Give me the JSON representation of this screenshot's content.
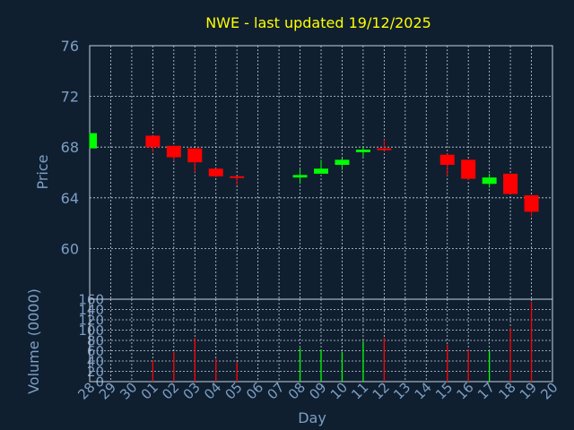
{
  "colors": {
    "background": "#0f1f30",
    "title": "#ffff00",
    "axis_text": "#7d9fc4",
    "grid": "#c8d2de",
    "up": "#00ff00",
    "down": "#ff0000"
  },
  "chart_data": [
    {
      "type": "candlestick",
      "title": "NWE - last updated 19/12/2025",
      "ylabel": "Price",
      "ylim": [
        56,
        76
      ],
      "yticks": [
        60,
        64,
        68,
        72,
        76
      ],
      "grid": true,
      "x": [
        "28",
        "29",
        "30",
        "01",
        "02",
        "03",
        "04",
        "05",
        "06",
        "07",
        "08",
        "09",
        "10",
        "11",
        "12",
        "13",
        "14",
        "15",
        "16",
        "17",
        "18",
        "19",
        "20"
      ],
      "candles": [
        {
          "day": "28",
          "open": 67.9,
          "close": 69.1,
          "high": 69.1,
          "low": 67.9
        },
        {
          "day": "01",
          "open": 68.9,
          "close": 68.0,
          "high": 68.9,
          "low": 67.6
        },
        {
          "day": "02",
          "open": 68.1,
          "close": 67.2,
          "high": 68.1,
          "low": 66.9
        },
        {
          "day": "03",
          "open": 67.9,
          "close": 66.8,
          "high": 67.9,
          "low": 66.0
        },
        {
          "day": "04",
          "open": 66.3,
          "close": 65.7,
          "high": 66.3,
          "low": 65.6
        },
        {
          "day": "05",
          "open": 65.7,
          "close": 65.6,
          "high": 65.7,
          "low": 65.0
        },
        {
          "day": "08",
          "open": 65.6,
          "close": 65.8,
          "high": 66.3,
          "low": 65.1
        },
        {
          "day": "09",
          "open": 65.9,
          "close": 66.3,
          "high": 67.0,
          "low": 65.9
        },
        {
          "day": "10",
          "open": 66.6,
          "close": 67.0,
          "high": 67.1,
          "low": 66.2
        },
        {
          "day": "11",
          "open": 67.6,
          "close": 67.8,
          "high": 68.0,
          "low": 67.2
        },
        {
          "day": "12",
          "open": 67.9,
          "close": 67.8,
          "high": 68.6,
          "low": 67.7
        },
        {
          "day": "15",
          "open": 67.4,
          "close": 66.6,
          "high": 67.5,
          "low": 65.7
        },
        {
          "day": "16",
          "open": 67.0,
          "close": 65.5,
          "high": 67.0,
          "low": 65.4
        },
        {
          "day": "17",
          "open": 65.1,
          "close": 65.6,
          "high": 65.9,
          "low": 64.8
        },
        {
          "day": "18",
          "open": 65.9,
          "close": 64.3,
          "high": 65.9,
          "low": 64.3
        },
        {
          "day": "19",
          "open": 64.2,
          "close": 62.9,
          "high": 64.2,
          "low": 62.5
        }
      ]
    },
    {
      "type": "bar",
      "ylabel": "Volume (0000)",
      "xlabel": "Day",
      "ylim": [
        0,
        160
      ],
      "yticks": [
        0,
        20,
        40,
        60,
        80,
        100,
        120,
        140,
        160
      ],
      "grid": true,
      "x": [
        "28",
        "29",
        "30",
        "01",
        "02",
        "03",
        "04",
        "05",
        "06",
        "07",
        "08",
        "09",
        "10",
        "11",
        "12",
        "13",
        "14",
        "15",
        "16",
        "17",
        "18",
        "19",
        "20"
      ],
      "bars": [
        {
          "day": "01",
          "value": 42,
          "dir": "down"
        },
        {
          "day": "02",
          "value": 58,
          "dir": "down"
        },
        {
          "day": "03",
          "value": 85,
          "dir": "down"
        },
        {
          "day": "04",
          "value": 44,
          "dir": "down"
        },
        {
          "day": "05",
          "value": 38,
          "dir": "down"
        },
        {
          "day": "08",
          "value": 65,
          "dir": "up"
        },
        {
          "day": "09",
          "value": 62,
          "dir": "up"
        },
        {
          "day": "10",
          "value": 58,
          "dir": "up"
        },
        {
          "day": "11",
          "value": 78,
          "dir": "up"
        },
        {
          "day": "12",
          "value": 85,
          "dir": "down"
        },
        {
          "day": "15",
          "value": 72,
          "dir": "down"
        },
        {
          "day": "16",
          "value": 62,
          "dir": "down"
        },
        {
          "day": "17",
          "value": 60,
          "dir": "up"
        },
        {
          "day": "18",
          "value": 105,
          "dir": "down"
        },
        {
          "day": "19",
          "value": 155,
          "dir": "down"
        }
      ]
    }
  ]
}
